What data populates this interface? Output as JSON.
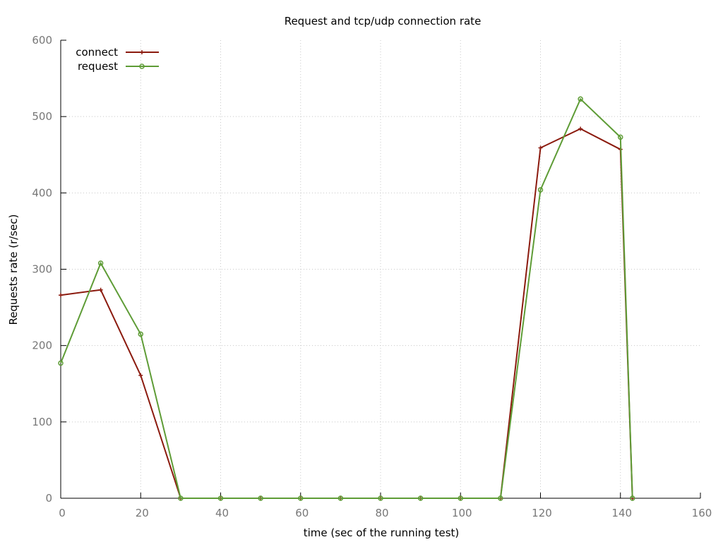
{
  "chart_data": {
    "type": "line",
    "title": "Request and tcp/udp connection rate",
    "xlabel": "time (sec of the running test)",
    "ylabel": "Requests rate (r/sec)",
    "xlim": [
      0,
      160
    ],
    "ylim": [
      0,
      600
    ],
    "x_ticks": [
      0,
      20,
      40,
      60,
      80,
      100,
      120,
      140,
      160
    ],
    "y_ticks": [
      0,
      100,
      200,
      300,
      400,
      500,
      600
    ],
    "grid": true,
    "legend_position": "top-left",
    "series": [
      {
        "name": "connect",
        "color": "#8b1a0e",
        "marker": "plus",
        "x": [
          0,
          10,
          20,
          30,
          40,
          50,
          60,
          70,
          80,
          90,
          100,
          110,
          120,
          130,
          140,
          143
        ],
        "y": [
          266,
          273,
          161,
          0,
          0,
          0,
          0,
          0,
          0,
          0,
          0,
          0,
          459,
          484,
          457,
          0
        ]
      },
      {
        "name": "request",
        "color": "#5e9c36",
        "marker": "circle",
        "x": [
          0,
          10,
          20,
          30,
          40,
          50,
          60,
          70,
          80,
          90,
          100,
          110,
          120,
          130,
          140,
          143
        ],
        "y": [
          177,
          308,
          215,
          0,
          0,
          0,
          0,
          0,
          0,
          0,
          0,
          0,
          404,
          523,
          473,
          0
        ]
      }
    ]
  }
}
